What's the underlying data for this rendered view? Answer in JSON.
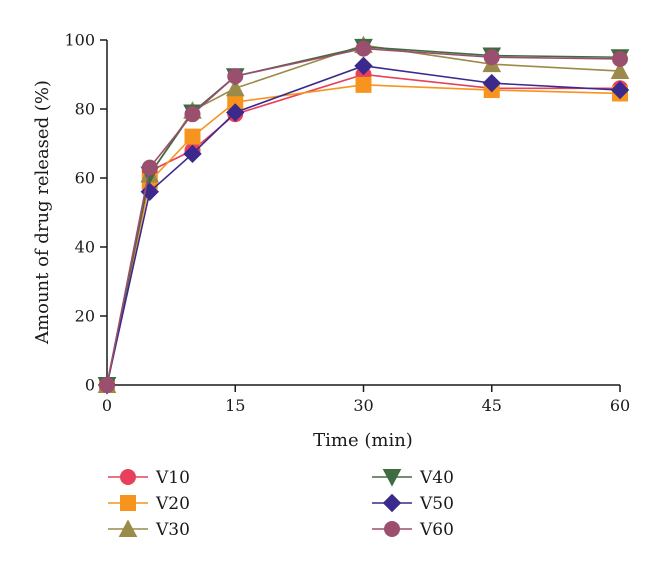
{
  "chart_data": {
    "type": "line",
    "title": "",
    "xlabel": "Time (min)",
    "ylabel": "Amount of drug released (%)",
    "x": [
      0,
      5,
      10,
      15,
      30,
      45,
      60
    ],
    "xticks": [
      0,
      15,
      30,
      45,
      60
    ],
    "yticks": [
      0,
      20,
      40,
      60,
      80,
      100
    ],
    "xlim": [
      0,
      60
    ],
    "ylim": [
      0,
      100
    ],
    "grid": false,
    "legend_position": "bottom",
    "series": [
      {
        "name": "V10",
        "marker": "circle",
        "color": "#e8405c",
        "values": [
          0,
          62,
          68,
          78.5,
          90,
          86,
          86
        ]
      },
      {
        "name": "V20",
        "marker": "square",
        "color": "#f7941d",
        "values": [
          0,
          59,
          72,
          82,
          87,
          85.5,
          84.5
        ]
      },
      {
        "name": "V30",
        "marker": "triangle-up",
        "color": "#9c8a4a",
        "values": [
          0,
          61,
          79.5,
          86,
          98.5,
          93,
          91
        ]
      },
      {
        "name": "V40",
        "marker": "triangle-down",
        "color": "#3f6b40",
        "values": [
          0,
          61,
          79,
          89.5,
          98,
          95.5,
          95
        ]
      },
      {
        "name": "V50",
        "marker": "diamond",
        "color": "#3b2a8c",
        "values": [
          0,
          56,
          67,
          79,
          92.5,
          87.5,
          85.5
        ]
      },
      {
        "name": "V60",
        "marker": "circle",
        "color": "#9b4f6e",
        "values": [
          0,
          63,
          78.5,
          89.5,
          97.5,
          95,
          94.5
        ]
      }
    ]
  }
}
